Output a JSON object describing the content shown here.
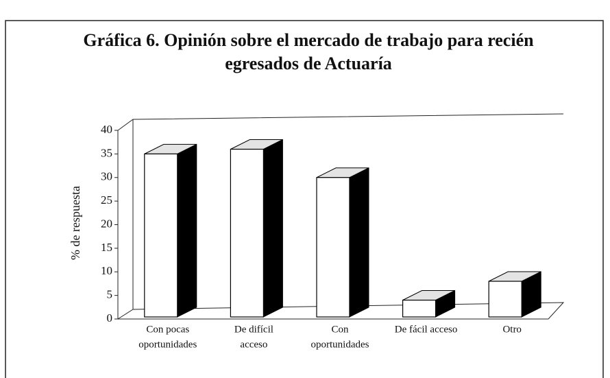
{
  "chart_data": {
    "type": "bar3d",
    "title": "Gráfica 6. Opinión sobre el mercado de trabajo para recién egresados de Actuaría",
    "y_label": "% de respuesta",
    "categories": [
      [
        "Con pocas",
        "oportunidades"
      ],
      [
        "De difícil",
        "acceso"
      ],
      [
        "Con",
        "oportunidades"
      ],
      [
        "De fácil acceso"
      ],
      [
        "Otro"
      ]
    ],
    "values": [
      35,
      36,
      30,
      4,
      8
    ],
    "ylim": [
      0,
      40
    ],
    "yticks": [
      0,
      5,
      10,
      15,
      20,
      25,
      30,
      35,
      40
    ]
  }
}
